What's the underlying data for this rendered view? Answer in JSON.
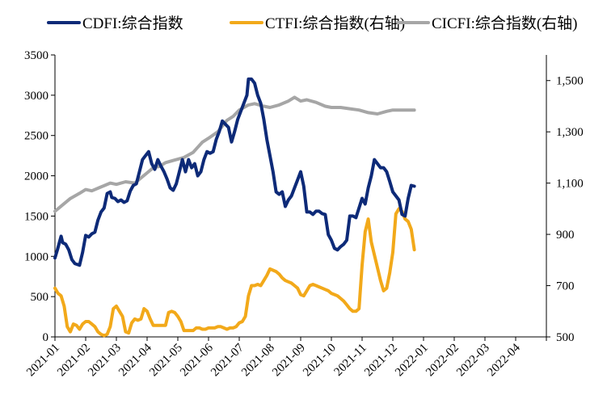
{
  "chart_data": {
    "type": "line",
    "legend_position": "top",
    "grid": false,
    "x_labels": [
      "2021-01",
      "2021-02",
      "2021-03",
      "2021-04",
      "2021-05",
      "2021-06",
      "2021-07",
      "2021-08",
      "2021-09",
      "2021-10",
      "2021-11",
      "2021-12",
      "2022-01",
      "2022-02",
      "2022-03",
      "2022-04"
    ],
    "y_left": {
      "min": 0,
      "max": 3500,
      "ticks": [
        0,
        500,
        1000,
        1500,
        2000,
        2500,
        3000,
        3500
      ],
      "tick_labels": [
        "0",
        "500",
        "1000",
        "1500",
        "2000",
        "2500",
        "3000",
        "3500"
      ]
    },
    "y_right": {
      "min": 500,
      "max": 1600,
      "ticks": [
        500,
        700,
        900,
        1100,
        1300,
        1500
      ],
      "tick_labels": [
        "500",
        "700",
        "900",
        "1,100",
        "1,300",
        "1,500"
      ]
    },
    "series": [
      {
        "name": "CDFI:综合指数",
        "axis": "left",
        "color": "#0d2a78",
        "points": [
          [
            0,
            980
          ],
          [
            0.08,
            1080
          ],
          [
            0.15,
            1180
          ],
          [
            0.2,
            1250
          ],
          [
            0.25,
            1170
          ],
          [
            0.35,
            1150
          ],
          [
            0.45,
            1080
          ],
          [
            0.55,
            960
          ],
          [
            0.65,
            910
          ],
          [
            0.8,
            890
          ],
          [
            0.9,
            1050
          ],
          [
            1.0,
            1260
          ],
          [
            1.1,
            1240
          ],
          [
            1.2,
            1280
          ],
          [
            1.3,
            1300
          ],
          [
            1.4,
            1450
          ],
          [
            1.5,
            1550
          ],
          [
            1.6,
            1600
          ],
          [
            1.7,
            1780
          ],
          [
            1.8,
            1800
          ],
          [
            1.85,
            1730
          ],
          [
            1.95,
            1720
          ],
          [
            2.05,
            1680
          ],
          [
            2.15,
            1700
          ],
          [
            2.25,
            1670
          ],
          [
            2.35,
            1690
          ],
          [
            2.45,
            1810
          ],
          [
            2.55,
            1880
          ],
          [
            2.65,
            1900
          ],
          [
            2.75,
            2050
          ],
          [
            2.85,
            2200
          ],
          [
            2.95,
            2250
          ],
          [
            3.05,
            2300
          ],
          [
            3.15,
            2150
          ],
          [
            3.25,
            2080
          ],
          [
            3.35,
            2200
          ],
          [
            3.45,
            2120
          ],
          [
            3.55,
            2050
          ],
          [
            3.65,
            1960
          ],
          [
            3.75,
            1850
          ],
          [
            3.85,
            1820
          ],
          [
            3.95,
            1900
          ],
          [
            4.05,
            2050
          ],
          [
            4.15,
            2200
          ],
          [
            4.25,
            2050
          ],
          [
            4.35,
            2200
          ],
          [
            4.45,
            2100
          ],
          [
            4.55,
            2150
          ],
          [
            4.65,
            2000
          ],
          [
            4.75,
            2050
          ],
          [
            4.85,
            2200
          ],
          [
            4.95,
            2300
          ],
          [
            5.05,
            2280
          ],
          [
            5.15,
            2300
          ],
          [
            5.25,
            2450
          ],
          [
            5.35,
            2550
          ],
          [
            5.45,
            2680
          ],
          [
            5.55,
            2640
          ],
          [
            5.65,
            2600
          ],
          [
            5.75,
            2420
          ],
          [
            5.85,
            2550
          ],
          [
            5.95,
            2700
          ],
          [
            6.05,
            2800
          ],
          [
            6.15,
            2900
          ],
          [
            6.25,
            3000
          ],
          [
            6.3,
            3200
          ],
          [
            6.4,
            3200
          ],
          [
            6.5,
            3150
          ],
          [
            6.6,
            3000
          ],
          [
            6.7,
            2900
          ],
          [
            6.8,
            2700
          ],
          [
            6.9,
            2450
          ],
          [
            7.0,
            2250
          ],
          [
            7.1,
            2050
          ],
          [
            7.2,
            1800
          ],
          [
            7.3,
            1770
          ],
          [
            7.4,
            1800
          ],
          [
            7.5,
            1620
          ],
          [
            7.6,
            1700
          ],
          [
            7.7,
            1750
          ],
          [
            7.8,
            1850
          ],
          [
            7.9,
            1950
          ],
          [
            8.0,
            2050
          ],
          [
            8.1,
            1870
          ],
          [
            8.2,
            1550
          ],
          [
            8.3,
            1550
          ],
          [
            8.4,
            1520
          ],
          [
            8.5,
            1560
          ],
          [
            8.6,
            1560
          ],
          [
            8.7,
            1530
          ],
          [
            8.8,
            1520
          ],
          [
            8.9,
            1270
          ],
          [
            9.0,
            1200
          ],
          [
            9.1,
            1100
          ],
          [
            9.2,
            1080
          ],
          [
            9.3,
            1120
          ],
          [
            9.4,
            1150
          ],
          [
            9.5,
            1200
          ],
          [
            9.6,
            1500
          ],
          [
            9.7,
            1500
          ],
          [
            9.8,
            1480
          ],
          [
            9.9,
            1600
          ],
          [
            10.0,
            1720
          ],
          [
            10.1,
            1650
          ],
          [
            10.2,
            1850
          ],
          [
            10.3,
            2000
          ],
          [
            10.4,
            2200
          ],
          [
            10.5,
            2150
          ],
          [
            10.6,
            2100
          ],
          [
            10.7,
            2100
          ],
          [
            10.8,
            2050
          ],
          [
            10.9,
            1930
          ],
          [
            11.0,
            1800
          ],
          [
            11.1,
            1750
          ],
          [
            11.2,
            1700
          ],
          [
            11.3,
            1520
          ],
          [
            11.4,
            1500
          ],
          [
            11.5,
            1720
          ],
          [
            11.6,
            1880
          ],
          [
            11.7,
            1870
          ]
        ]
      },
      {
        "name": "CTFI:综合指数(右轴)",
        "axis": "right",
        "color": "#f2a91a",
        "points": [
          [
            0,
            690
          ],
          [
            0.1,
            670
          ],
          [
            0.2,
            660
          ],
          [
            0.3,
            620
          ],
          [
            0.4,
            540
          ],
          [
            0.5,
            520
          ],
          [
            0.6,
            550
          ],
          [
            0.7,
            545
          ],
          [
            0.8,
            530
          ],
          [
            0.9,
            550
          ],
          [
            1.0,
            560
          ],
          [
            1.1,
            560
          ],
          [
            1.2,
            550
          ],
          [
            1.3,
            540
          ],
          [
            1.4,
            520
          ],
          [
            1.5,
            510
          ],
          [
            1.6,
            505
          ],
          [
            1.7,
            510
          ],
          [
            1.8,
            540
          ],
          [
            1.9,
            610
          ],
          [
            2.0,
            620
          ],
          [
            2.1,
            600
          ],
          [
            2.2,
            580
          ],
          [
            2.3,
            520
          ],
          [
            2.4,
            515
          ],
          [
            2.5,
            555
          ],
          [
            2.6,
            570
          ],
          [
            2.7,
            565
          ],
          [
            2.8,
            570
          ],
          [
            2.9,
            610
          ],
          [
            3.0,
            600
          ],
          [
            3.1,
            570
          ],
          [
            3.2,
            545
          ],
          [
            3.3,
            545
          ],
          [
            3.4,
            545
          ],
          [
            3.5,
            545
          ],
          [
            3.6,
            545
          ],
          [
            3.7,
            595
          ],
          [
            3.8,
            600
          ],
          [
            3.9,
            595
          ],
          [
            4.0,
            580
          ],
          [
            4.1,
            560
          ],
          [
            4.2,
            525
          ],
          [
            4.3,
            525
          ],
          [
            4.4,
            525
          ],
          [
            4.5,
            525
          ],
          [
            4.6,
            535
          ],
          [
            4.7,
            535
          ],
          [
            4.8,
            530
          ],
          [
            4.9,
            530
          ],
          [
            5.0,
            535
          ],
          [
            5.1,
            535
          ],
          [
            5.2,
            535
          ],
          [
            5.3,
            540
          ],
          [
            5.4,
            540
          ],
          [
            5.5,
            535
          ],
          [
            5.6,
            530
          ],
          [
            5.7,
            535
          ],
          [
            5.8,
            535
          ],
          [
            5.9,
            540
          ],
          [
            6.0,
            555
          ],
          [
            6.1,
            560
          ],
          [
            6.2,
            580
          ],
          [
            6.3,
            660
          ],
          [
            6.4,
            700
          ],
          [
            6.5,
            700
          ],
          [
            6.6,
            705
          ],
          [
            6.7,
            700
          ],
          [
            6.8,
            720
          ],
          [
            6.9,
            740
          ],
          [
            7.0,
            765
          ],
          [
            7.1,
            760
          ],
          [
            7.2,
            755
          ],
          [
            7.3,
            745
          ],
          [
            7.4,
            730
          ],
          [
            7.5,
            720
          ],
          [
            7.6,
            715
          ],
          [
            7.7,
            710
          ],
          [
            7.8,
            700
          ],
          [
            7.9,
            690
          ],
          [
            8.0,
            665
          ],
          [
            8.1,
            660
          ],
          [
            8.2,
            680
          ],
          [
            8.3,
            700
          ],
          [
            8.4,
            705
          ],
          [
            8.5,
            700
          ],
          [
            8.6,
            695
          ],
          [
            8.7,
            690
          ],
          [
            8.8,
            685
          ],
          [
            8.9,
            680
          ],
          [
            9.0,
            670
          ],
          [
            9.1,
            665
          ],
          [
            9.2,
            660
          ],
          [
            9.3,
            650
          ],
          [
            9.4,
            640
          ],
          [
            9.5,
            625
          ],
          [
            9.6,
            610
          ],
          [
            9.7,
            600
          ],
          [
            9.8,
            600
          ],
          [
            9.9,
            610
          ],
          [
            10.0,
            780
          ],
          [
            10.1,
            910
          ],
          [
            10.2,
            960
          ],
          [
            10.3,
            870
          ],
          [
            10.4,
            820
          ],
          [
            10.5,
            770
          ],
          [
            10.6,
            720
          ],
          [
            10.7,
            680
          ],
          [
            10.8,
            690
          ],
          [
            10.9,
            750
          ],
          [
            11.0,
            830
          ],
          [
            11.1,
            980
          ],
          [
            11.2,
            1000
          ],
          [
            11.3,
            990
          ],
          [
            11.4,
            960
          ],
          [
            11.5,
            950
          ],
          [
            11.6,
            920
          ],
          [
            11.7,
            840
          ]
        ]
      },
      {
        "name": "CICFI:综合指数(右轴)",
        "axis": "right",
        "color": "#a6a6a6",
        "points": [
          [
            0,
            990
          ],
          [
            0.2,
            1010
          ],
          [
            0.5,
            1040
          ],
          [
            0.8,
            1060
          ],
          [
            1.0,
            1075
          ],
          [
            1.2,
            1070
          ],
          [
            1.5,
            1085
          ],
          [
            1.8,
            1100
          ],
          [
            2.0,
            1095
          ],
          [
            2.3,
            1105
          ],
          [
            2.6,
            1100
          ],
          [
            2.9,
            1130
          ],
          [
            3.2,
            1160
          ],
          [
            3.4,
            1165
          ],
          [
            3.6,
            1180
          ],
          [
            3.9,
            1190
          ],
          [
            4.2,
            1200
          ],
          [
            4.5,
            1220
          ],
          [
            4.8,
            1260
          ],
          [
            5.0,
            1275
          ],
          [
            5.3,
            1300
          ],
          [
            5.6,
            1345
          ],
          [
            5.8,
            1360
          ],
          [
            6.0,
            1385
          ],
          [
            6.3,
            1405
          ],
          [
            6.5,
            1410
          ],
          [
            6.8,
            1400
          ],
          [
            7.0,
            1395
          ],
          [
            7.3,
            1405
          ],
          [
            7.6,
            1420
          ],
          [
            7.8,
            1435
          ],
          [
            8.0,
            1420
          ],
          [
            8.2,
            1425
          ],
          [
            8.5,
            1415
          ],
          [
            8.8,
            1400
          ],
          [
            9.0,
            1395
          ],
          [
            9.3,
            1395
          ],
          [
            9.6,
            1390
          ],
          [
            9.9,
            1385
          ],
          [
            10.2,
            1375
          ],
          [
            10.5,
            1370
          ],
          [
            10.8,
            1380
          ],
          [
            11.0,
            1385
          ],
          [
            11.3,
            1385
          ],
          [
            11.6,
            1385
          ],
          [
            11.7,
            1385
          ]
        ]
      }
    ]
  }
}
